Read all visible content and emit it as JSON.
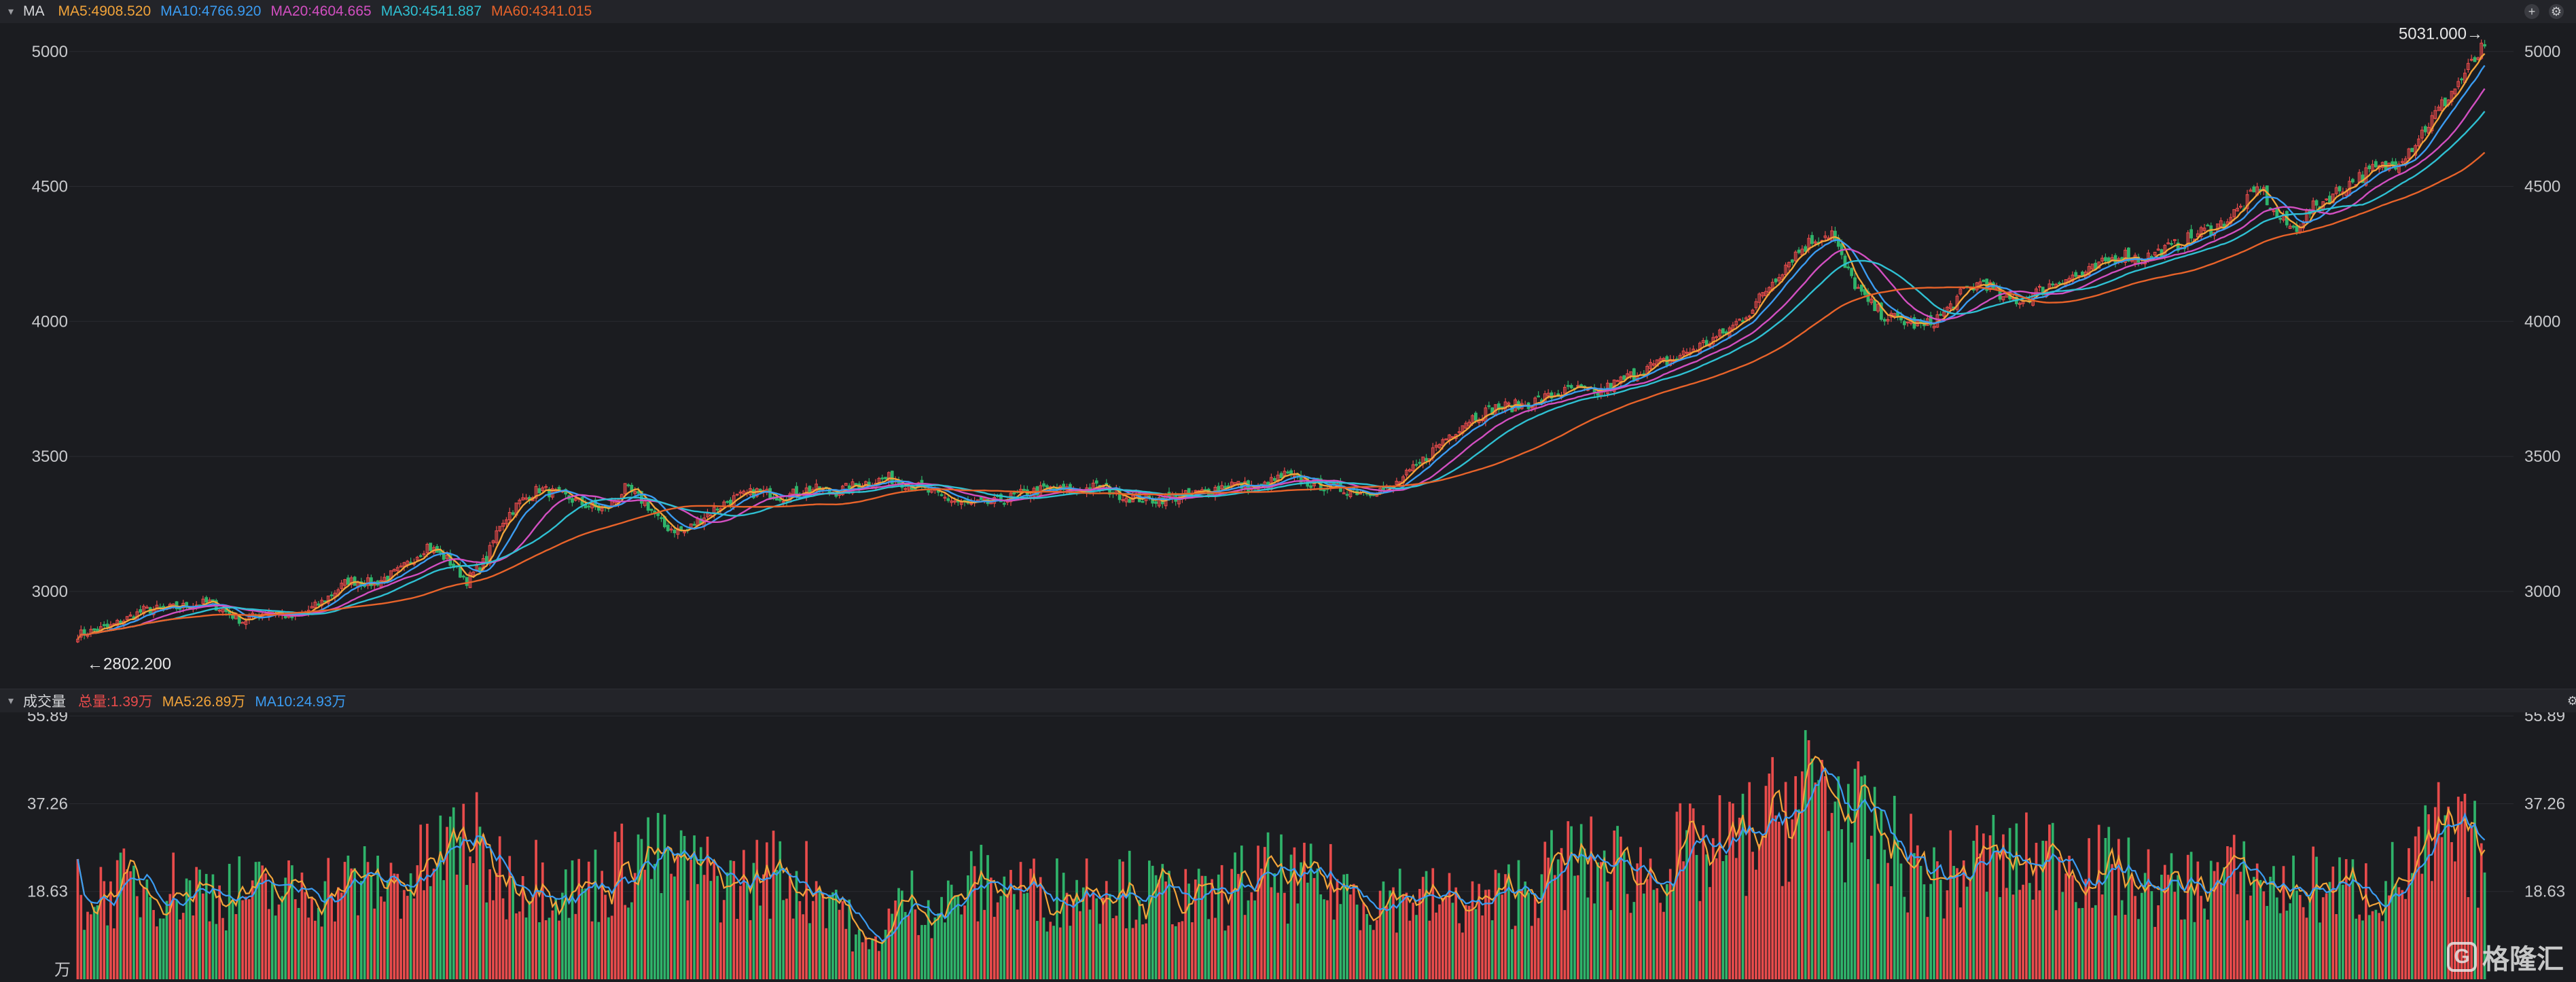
{
  "price_header": {
    "name": "MA",
    "items": [
      {
        "label": "MA5:4908.520",
        "color": "#f2a43a"
      },
      {
        "label": "MA10:4766.920",
        "color": "#3b9cf2"
      },
      {
        "label": "MA20:4604.665",
        "color": "#d24fc1"
      },
      {
        "label": "MA30:4541.887",
        "color": "#2fc0d2"
      },
      {
        "label": "MA60:4341.015",
        "color": "#e8632a"
      }
    ]
  },
  "volume_header": {
    "name": "成交量",
    "items": [
      {
        "label": "总量:1.39万",
        "color": "#e84b4b"
      },
      {
        "label": "MA5:26.89万",
        "color": "#f2a43a"
      },
      {
        "label": "MA10:24.93万",
        "color": "#3b9cf2"
      }
    ]
  },
  "logo_text": "格隆汇",
  "chart_data": [
    {
      "type": "candlestick",
      "ylim": [
        2650,
        5100
      ],
      "y_ticks": [
        3000,
        3500,
        4000,
        4500,
        5000
      ],
      "annotations": [
        {
          "text": "←2802.200",
          "kind": "min"
        },
        {
          "text": "5031.000→",
          "kind": "max"
        }
      ],
      "anchors": [
        [
          0,
          2840
        ],
        [
          10,
          2870
        ],
        [
          20,
          2930
        ],
        [
          30,
          2940
        ],
        [
          40,
          2960
        ],
        [
          50,
          2890
        ],
        [
          58,
          2930
        ],
        [
          66,
          2900
        ],
        [
          74,
          2960
        ],
        [
          82,
          3040
        ],
        [
          90,
          3030
        ],
        [
          98,
          3080
        ],
        [
          106,
          3170
        ],
        [
          112,
          3120
        ],
        [
          118,
          3040
        ],
        [
          124,
          3120
        ],
        [
          128,
          3250
        ],
        [
          134,
          3330
        ],
        [
          140,
          3380
        ],
        [
          148,
          3350
        ],
        [
          154,
          3320
        ],
        [
          160,
          3300
        ],
        [
          166,
          3380
        ],
        [
          172,
          3330
        ],
        [
          178,
          3240
        ],
        [
          184,
          3220
        ],
        [
          190,
          3280
        ],
        [
          198,
          3340
        ],
        [
          206,
          3370
        ],
        [
          214,
          3350
        ],
        [
          222,
          3380
        ],
        [
          230,
          3370
        ],
        [
          238,
          3400
        ],
        [
          246,
          3420
        ],
        [
          254,
          3390
        ],
        [
          262,
          3350
        ],
        [
          270,
          3320
        ],
        [
          278,
          3330
        ],
        [
          286,
          3360
        ],
        [
          294,
          3380
        ],
        [
          302,
          3370
        ],
        [
          310,
          3390
        ],
        [
          318,
          3350
        ],
        [
          326,
          3340
        ],
        [
          334,
          3350
        ],
        [
          342,
          3370
        ],
        [
          350,
          3400
        ],
        [
          358,
          3380
        ],
        [
          366,
          3430
        ],
        [
          374,
          3400
        ],
        [
          382,
          3380
        ],
        [
          390,
          3370
        ],
        [
          398,
          3380
        ],
        [
          406,
          3460
        ],
        [
          414,
          3560
        ],
        [
          422,
          3640
        ],
        [
          430,
          3680
        ],
        [
          438,
          3690
        ],
        [
          446,
          3720
        ],
        [
          454,
          3750
        ],
        [
          460,
          3730
        ],
        [
          468,
          3780
        ],
        [
          476,
          3830
        ],
        [
          484,
          3860
        ],
        [
          492,
          3910
        ],
        [
          500,
          3960
        ],
        [
          508,
          4050
        ],
        [
          514,
          4150
        ],
        [
          520,
          4240
        ],
        [
          526,
          4300
        ],
        [
          532,
          4330
        ],
        [
          536,
          4200
        ],
        [
          542,
          4080
        ],
        [
          548,
          4020
        ],
        [
          554,
          4000
        ],
        [
          560,
          3980
        ],
        [
          566,
          4030
        ],
        [
          572,
          4110
        ],
        [
          578,
          4150
        ],
        [
          584,
          4080
        ],
        [
          590,
          4080
        ],
        [
          596,
          4120
        ],
        [
          602,
          4160
        ],
        [
          608,
          4170
        ],
        [
          614,
          4210
        ],
        [
          620,
          4250
        ],
        [
          626,
          4230
        ],
        [
          632,
          4260
        ],
        [
          638,
          4290
        ],
        [
          644,
          4330
        ],
        [
          650,
          4360
        ],
        [
          656,
          4420
        ],
        [
          662,
          4500
        ],
        [
          666,
          4400
        ],
        [
          672,
          4340
        ],
        [
          678,
          4420
        ],
        [
          684,
          4470
        ],
        [
          690,
          4520
        ],
        [
          696,
          4560
        ],
        [
          702,
          4580
        ],
        [
          708,
          4650
        ],
        [
          714,
          4750
        ],
        [
          720,
          4850
        ],
        [
          726,
          4950
        ],
        [
          730,
          5020
        ]
      ],
      "ma_series": [
        {
          "name": "MA5",
          "period": 5,
          "color": "#f2a43a"
        },
        {
          "name": "MA10",
          "period": 10,
          "color": "#3b9cf2"
        },
        {
          "name": "MA20",
          "period": 20,
          "color": "#d24fc1"
        },
        {
          "name": "MA30",
          "period": 30,
          "color": "#2fc0d2"
        },
        {
          "name": "MA60",
          "period": 60,
          "color": "#e8632a"
        }
      ],
      "up_color": "#e84b4b",
      "down_color": "#2fb36a"
    },
    {
      "type": "bar",
      "y_ticks": [
        18.63,
        37.26,
        55.89
      ],
      "y_tick_labels": [
        "18.63",
        "37.26",
        "55.89"
      ],
      "ylim": [
        0,
        56.5
      ],
      "unit": "万",
      "anchors": [
        [
          0,
          18
        ],
        [
          20,
          20
        ],
        [
          40,
          19
        ],
        [
          60,
          18
        ],
        [
          70,
          19
        ],
        [
          80,
          20
        ],
        [
          100,
          21
        ],
        [
          112,
          27
        ],
        [
          118,
          31
        ],
        [
          124,
          24
        ],
        [
          130,
          22
        ],
        [
          140,
          22
        ],
        [
          150,
          19
        ],
        [
          160,
          21
        ],
        [
          170,
          27
        ],
        [
          180,
          24
        ],
        [
          190,
          22
        ],
        [
          200,
          20
        ],
        [
          210,
          23
        ],
        [
          220,
          21
        ],
        [
          230,
          18
        ],
        [
          236,
          9
        ],
        [
          240,
          6
        ],
        [
          246,
          13
        ],
        [
          252,
          17
        ],
        [
          262,
          15
        ],
        [
          272,
          20
        ],
        [
          282,
          20
        ],
        [
          292,
          18
        ],
        [
          302,
          19
        ],
        [
          312,
          22
        ],
        [
          322,
          18
        ],
        [
          332,
          18
        ],
        [
          342,
          16
        ],
        [
          352,
          20
        ],
        [
          362,
          22
        ],
        [
          372,
          20
        ],
        [
          382,
          20
        ],
        [
          392,
          17
        ],
        [
          400,
          18
        ],
        [
          410,
          17
        ],
        [
          420,
          16
        ],
        [
          428,
          16
        ],
        [
          436,
          19
        ],
        [
          444,
          21
        ],
        [
          452,
          25
        ],
        [
          460,
          24
        ],
        [
          468,
          24
        ],
        [
          476,
          22
        ],
        [
          484,
          26
        ],
        [
          494,
          26
        ],
        [
          504,
          29
        ],
        [
          512,
          32
        ],
        [
          518,
          36
        ],
        [
          522,
          38
        ],
        [
          528,
          42
        ],
        [
          534,
          38
        ],
        [
          540,
          32
        ],
        [
          548,
          28
        ],
        [
          556,
          25
        ],
        [
          562,
          21
        ],
        [
          568,
          22
        ],
        [
          574,
          24
        ],
        [
          580,
          26
        ],
        [
          586,
          24
        ],
        [
          594,
          25
        ],
        [
          602,
          26
        ],
        [
          610,
          24
        ],
        [
          618,
          22
        ],
        [
          626,
          20
        ],
        [
          634,
          19
        ],
        [
          642,
          20
        ],
        [
          650,
          22
        ],
        [
          660,
          21
        ],
        [
          670,
          19
        ],
        [
          680,
          20
        ],
        [
          690,
          19
        ],
        [
          700,
          20
        ],
        [
          710,
          24
        ],
        [
          716,
          30
        ],
        [
          722,
          28
        ],
        [
          730,
          26
        ]
      ],
      "ma_series": [
        {
          "name": "MA5",
          "period": 5,
          "color": "#f2a43a"
        },
        {
          "name": "MA10",
          "period": 10,
          "color": "#3b9cf2"
        }
      ]
    }
  ]
}
